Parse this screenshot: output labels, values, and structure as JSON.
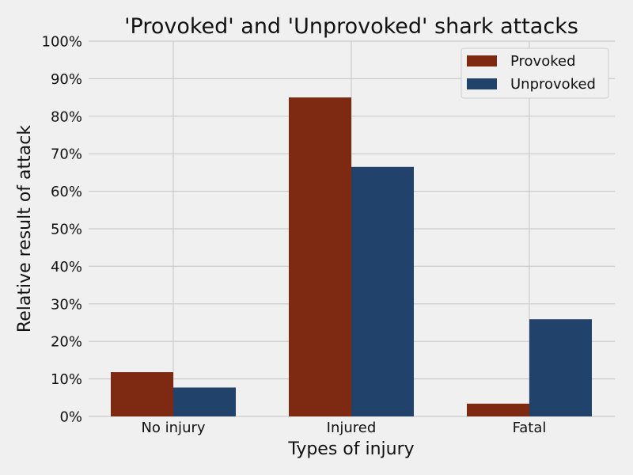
{
  "chart_data": {
    "type": "bar",
    "title": "'Provoked' and 'Unprovoked' shark attacks",
    "xlabel": "Types of injury",
    "ylabel": "Relative result of attack",
    "categories": [
      "No injury",
      "Injured",
      "Fatal"
    ],
    "series": [
      {
        "name": "Provoked",
        "color": "#7e2a12",
        "values": [
          11.8,
          85.0,
          3.4
        ]
      },
      {
        "name": "Unprovoked",
        "color": "#21426b",
        "values": [
          7.7,
          66.5,
          25.9
        ]
      }
    ],
    "ylim": [
      0,
      100
    ],
    "yticks": [
      "0%",
      "10%",
      "20%",
      "30%",
      "40%",
      "50%",
      "60%",
      "70%",
      "80%",
      "90%",
      "100%"
    ],
    "grid": true,
    "legend_position": "top-right"
  }
}
